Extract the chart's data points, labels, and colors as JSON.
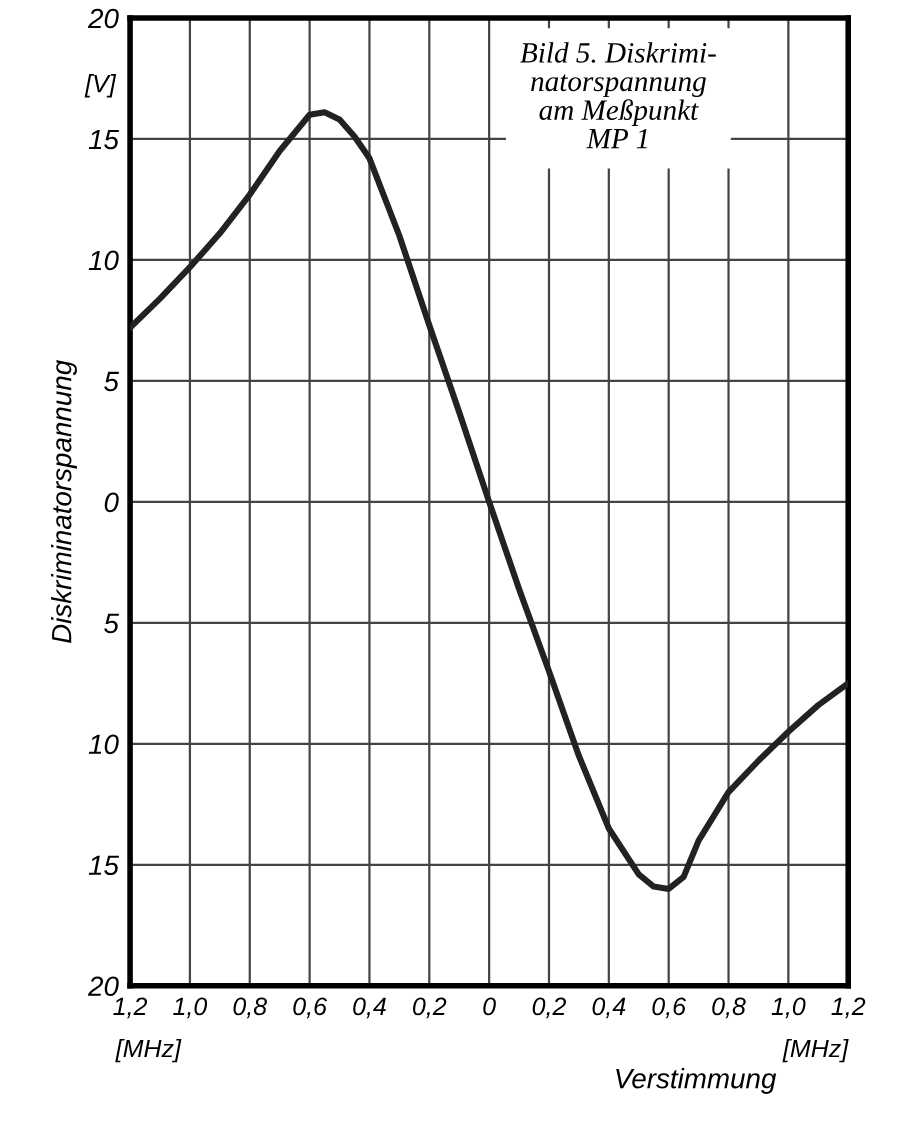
{
  "chart_data": {
    "type": "line",
    "title": "Bild 5. Diskrimi-\nnatorspannung\nam Meßpunkt\nMP 1",
    "xlabel": "Verstimmung",
    "ylabel": "Diskriminatorspannung",
    "annotations": [
      "[V]",
      "[MHz]",
      "[MHz]"
    ],
    "x": [
      -1.2,
      -1.1,
      -1.0,
      -0.9,
      -0.8,
      -0.7,
      -0.6,
      -0.55,
      -0.5,
      -0.45,
      -0.4,
      -0.3,
      -0.2,
      -0.1,
      0,
      0.1,
      0.2,
      0.3,
      0.4,
      0.5,
      0.55,
      0.6,
      0.65,
      0.7,
      0.8,
      0.9,
      1.0,
      1.1,
      1.2
    ],
    "series": [
      {
        "color": "#222222",
        "values": [
          7.2,
          8.4,
          9.7,
          11.1,
          12.7,
          14.5,
          16.0,
          16.1,
          15.8,
          15.1,
          14.2,
          11.0,
          7.3,
          3.7,
          0,
          -3.6,
          -7.0,
          -10.5,
          -13.5,
          -15.4,
          -15.9,
          -16.0,
          -15.5,
          -14.0,
          -12.0,
          -10.7,
          -9.5,
          -8.4,
          -7.5
        ]
      }
    ],
    "xlim": [
      -1.2,
      1.2
    ],
    "ylim": [
      -20,
      20
    ],
    "xticks": [
      {
        "value": -1.2,
        "label": "1,2"
      },
      {
        "value": -1.0,
        "label": "1,0"
      },
      {
        "value": -0.8,
        "label": "0,8"
      },
      {
        "value": -0.6,
        "label": "0,6"
      },
      {
        "value": -0.4,
        "label": "0,4"
      },
      {
        "value": -0.2,
        "label": "0,2"
      },
      0,
      {
        "value": 0.2,
        "label": "0,2"
      },
      {
        "value": 0.4,
        "label": "0,4"
      },
      {
        "value": 0.6,
        "label": "0,6"
      },
      {
        "value": 0.8,
        "label": "0,8"
      },
      {
        "value": 1.0,
        "label": "1,0"
      },
      {
        "value": 1.2,
        "label": "1,2"
      }
    ],
    "yticks": [
      {
        "value": -20,
        "label": "20"
      },
      {
        "value": -15,
        "label": "15"
      },
      {
        "value": -10,
        "label": "10"
      },
      {
        "value": -5,
        "label": "5"
      },
      0,
      5,
      10,
      15,
      20
    ],
    "grid": true,
    "legend": false,
    "marker": "none",
    "line_style": "solid"
  }
}
